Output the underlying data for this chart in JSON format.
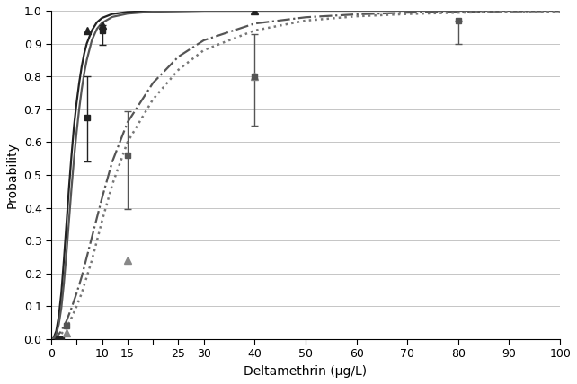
{
  "xlabel": "Deltamethrin (μg/L)",
  "ylabel": "Probability",
  "xlim": [
    0,
    100
  ],
  "ylim": [
    0,
    1.0
  ],
  "xticks": [
    0,
    5,
    10,
    15,
    20,
    25,
    30,
    40,
    50,
    60,
    70,
    80,
    90,
    100
  ],
  "xtick_labels": [
    "0",
    "",
    "10",
    "15",
    "",
    "25",
    "30",
    "40",
    "50",
    "60",
    "70",
    "80",
    "90",
    "100"
  ],
  "yticks": [
    0.0,
    0.1,
    0.2,
    0.3,
    0.4,
    0.5,
    0.6,
    0.7,
    0.8,
    0.9,
    1.0
  ],
  "background_color": "#ffffff",
  "curve1_x": [
    0.01,
    0.2,
    0.5,
    1.0,
    1.5,
    2.0,
    2.5,
    3.0,
    3.5,
    4.0,
    4.5,
    5.0,
    5.5,
    6.0,
    6.5,
    7.0,
    7.5,
    8.0,
    9.0,
    10.0,
    12.0,
    15.0,
    20.0,
    30.0,
    50.0,
    100.0
  ],
  "curve1_y": [
    0.0,
    0.001,
    0.005,
    0.025,
    0.07,
    0.14,
    0.24,
    0.35,
    0.46,
    0.56,
    0.65,
    0.72,
    0.78,
    0.83,
    0.87,
    0.9,
    0.92,
    0.94,
    0.965,
    0.978,
    0.99,
    0.996,
    0.999,
    0.9999,
    1.0,
    1.0
  ],
  "curve1_style": "solid",
  "curve1_color": "#222222",
  "curve1_lw": 1.6,
  "curve2_x": [
    0.01,
    0.2,
    0.5,
    1.0,
    1.5,
    2.0,
    2.5,
    3.0,
    3.5,
    4.0,
    4.5,
    5.0,
    5.5,
    6.0,
    6.5,
    7.0,
    7.5,
    8.0,
    9.0,
    10.0,
    12.0,
    15.0,
    20.0,
    30.0,
    50.0,
    100.0
  ],
  "curve2_y": [
    0.0,
    0.0005,
    0.003,
    0.015,
    0.045,
    0.095,
    0.17,
    0.26,
    0.36,
    0.46,
    0.55,
    0.63,
    0.7,
    0.76,
    0.81,
    0.85,
    0.88,
    0.91,
    0.945,
    0.963,
    0.981,
    0.991,
    0.997,
    0.9998,
    1.0,
    1.0
  ],
  "curve2_style": "solid",
  "curve2_color": "#555555",
  "curve2_lw": 1.6,
  "curve3_x": [
    0.01,
    0.2,
    0.5,
    1.0,
    2.0,
    3.0,
    4.0,
    5.0,
    6.0,
    7.0,
    8.0,
    9.0,
    10.0,
    12.0,
    15.0,
    20.0,
    25.0,
    30.0,
    40.0,
    50.0,
    60.0,
    70.0,
    80.0,
    90.0,
    100.0
  ],
  "curve3_y": [
    0.0,
    0.0002,
    0.001,
    0.006,
    0.025,
    0.055,
    0.095,
    0.14,
    0.19,
    0.25,
    0.31,
    0.37,
    0.43,
    0.54,
    0.66,
    0.78,
    0.86,
    0.91,
    0.961,
    0.98,
    0.989,
    0.994,
    0.997,
    0.998,
    0.999
  ],
  "curve3_style": "dashdot",
  "curve3_color": "#555555",
  "curve3_lw": 1.6,
  "curve4_x": [
    0.01,
    0.2,
    0.5,
    1.0,
    2.0,
    3.0,
    4.0,
    5.0,
    6.0,
    7.0,
    8.0,
    9.0,
    10.0,
    12.0,
    15.0,
    20.0,
    25.0,
    30.0,
    40.0,
    50.0,
    60.0,
    70.0,
    80.0,
    90.0,
    100.0
  ],
  "curve4_y": [
    0.0,
    0.0001,
    0.0007,
    0.004,
    0.016,
    0.036,
    0.065,
    0.1,
    0.14,
    0.19,
    0.24,
    0.3,
    0.36,
    0.47,
    0.6,
    0.73,
    0.82,
    0.88,
    0.94,
    0.97,
    0.983,
    0.99,
    0.994,
    0.997,
    0.998
  ],
  "curve4_style": "dotted",
  "curve4_color": "#777777",
  "curve4_lw": 1.8,
  "series": [
    {
      "x": [
        2.0,
        7.0,
        10.0
      ],
      "y": [
        0.0,
        0.675,
        0.94
      ],
      "yerr_minus": [
        0.0,
        0.135,
        0.0
      ],
      "yerr_plus": [
        0.0,
        0.125,
        0.0
      ],
      "marker": "s",
      "color": "#222222",
      "ms": 5
    },
    {
      "x": [
        1.0,
        7.0,
        10.0,
        40.0
      ],
      "y": [
        0.0,
        0.94,
        0.955,
        1.0
      ],
      "yerr_minus": [
        0.0,
        0.0,
        0.06,
        0.0
      ],
      "yerr_plus": [
        0.0,
        0.0,
        0.0,
        0.0
      ],
      "marker": "^",
      "color": "#222222",
      "ms": 6
    },
    {
      "x": [
        3.0,
        15.0,
        40.0,
        80.0
      ],
      "y": [
        0.04,
        0.56,
        0.8,
        0.97
      ],
      "yerr_minus": [
        0.0,
        0.165,
        0.15,
        0.07
      ],
      "yerr_plus": [
        0.0,
        0.135,
        0.13,
        0.0
      ],
      "marker": "s",
      "color": "#555555",
      "ms": 5
    },
    {
      "x": [
        3.0,
        15.0,
        40.0
      ],
      "y": [
        0.02,
        0.24,
        0.8
      ],
      "yerr_minus": [
        0.0,
        0.0,
        0.0
      ],
      "yerr_plus": [
        0.0,
        0.0,
        0.0
      ],
      "marker": "^",
      "color": "#888888",
      "ms": 6
    }
  ]
}
